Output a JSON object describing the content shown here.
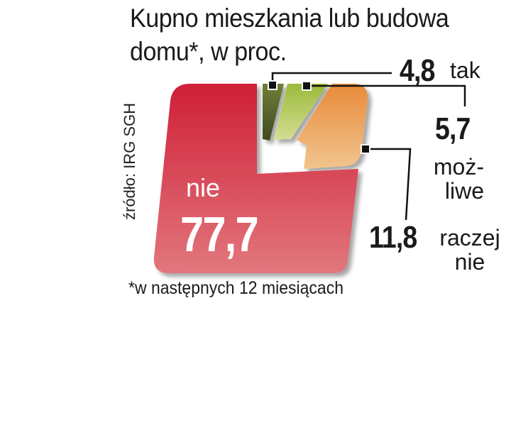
{
  "chart_data": {
    "type": "pie",
    "title": "Kupno mieszkania lub budowa domu*, w proc.",
    "source": "źródło: IRG SGH",
    "footnote": "*w następnych 12 miesiącach",
    "slices": [
      {
        "label": "nie",
        "value": 77.7,
        "value_text": "77,7",
        "color": "#d8394a"
      },
      {
        "label": "tak",
        "value": 4.8,
        "value_text": "4,8",
        "color": "#5c6d2e"
      },
      {
        "label": "moż-\nliwe",
        "value": 5.7,
        "value_text": "5,7",
        "color": "#9fb84a"
      },
      {
        "label": "raczej\nnie",
        "value": 11.8,
        "value_text": "11,8",
        "color": "#e89a4e"
      }
    ]
  }
}
